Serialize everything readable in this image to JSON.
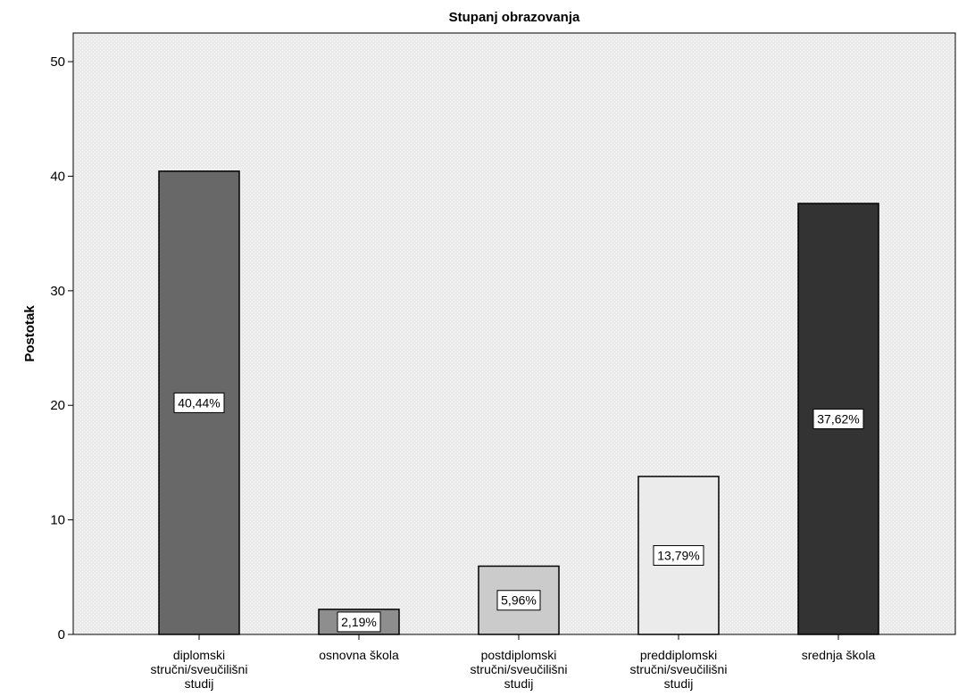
{
  "chart_data": {
    "type": "bar",
    "title": "Stupanj obrazovanja",
    "xlabel": "",
    "ylabel": "Postotak",
    "ylim": [
      0,
      52.5
    ],
    "yticks": [
      "0",
      "10",
      "20",
      "30",
      "40",
      "50"
    ],
    "ytick_values": [
      0,
      10,
      20,
      30,
      40,
      50
    ],
    "grid": true,
    "categories": [
      "diplomski stručni/sveučilišni studij",
      "osnovna škola",
      "postdiplomski stručni/sveučilišni studij",
      "preddiplomski stručni/sveučilišni studij",
      "srednja škola"
    ],
    "category_label_lines": [
      [
        "diplomski",
        "stručni/sveučilišni",
        "studij"
      ],
      [
        "osnovna škola"
      ],
      [
        "postdiplomski",
        "stručni/sveučilišni",
        "studij"
      ],
      [
        "preddiplomski",
        "stručni/sveučilišni",
        "studij"
      ],
      [
        "srednja škola"
      ]
    ],
    "values": [
      40.44,
      2.19,
      5.96,
      13.79,
      37.62
    ],
    "data_labels": [
      "40,44%",
      "2,19%",
      "5,96%",
      "13,79%",
      "37,62%"
    ],
    "bar_colors": [
      "#686868",
      "#8e8e8e",
      "#cbcbcb",
      "#ebebeb",
      "#333333"
    ],
    "plot_background": "#ebebeb"
  }
}
